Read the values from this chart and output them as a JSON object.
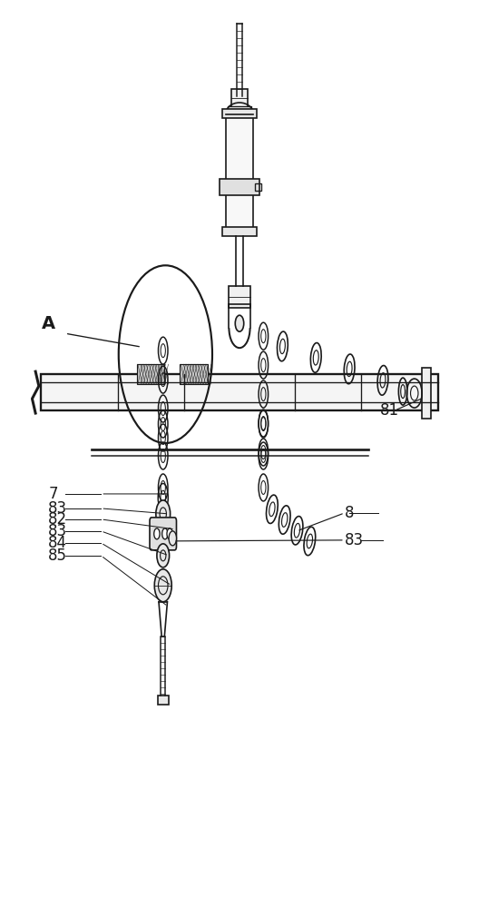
{
  "background_color": "#ffffff",
  "line_color": "#1a1a1a",
  "lw": 1.2,
  "fig_width": 5.28,
  "fig_height": 10.0
}
